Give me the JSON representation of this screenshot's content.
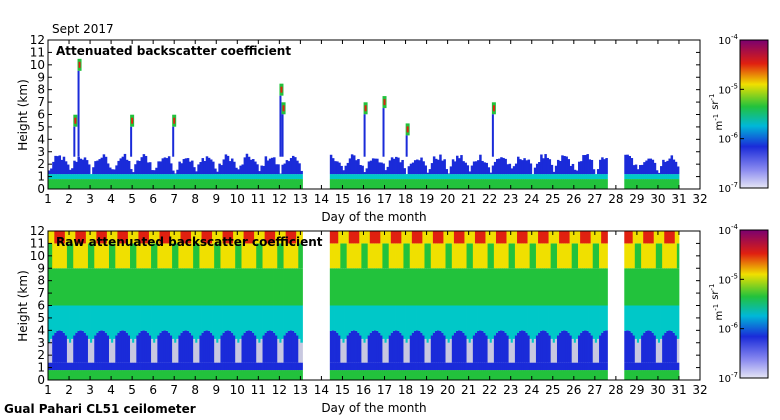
{
  "header": {
    "date_label": "Sept 2017"
  },
  "footer": {
    "station_label": "Gual Pahari CL51 ceilometer"
  },
  "colors": {
    "blue": "#1a2bd9",
    "cyan": "#00c8c8",
    "green": "#22c23c",
    "yellow": "#f0e000",
    "red": "#e02010",
    "purple": "#7a0070",
    "gray": "#c8c8e0"
  },
  "chart_data": [
    {
      "type": "heatmap",
      "title": "Attenuated backscatter coefficient",
      "xlabel": "Day of the month",
      "ylabel": "Height (km)",
      "xlim": [
        1,
        32
      ],
      "ylim": [
        0,
        12
      ],
      "x_ticks": [
        1,
        2,
        3,
        4,
        5,
        6,
        7,
        8,
        9,
        10,
        11,
        12,
        13,
        14,
        15,
        16,
        17,
        18,
        19,
        20,
        21,
        22,
        23,
        24,
        25,
        26,
        27,
        28,
        29,
        30,
        31,
        32
      ],
      "y_ticks": [
        0,
        1,
        2,
        3,
        4,
        5,
        6,
        7,
        8,
        9,
        10,
        11,
        12
      ],
      "data_gaps": [
        [
          13.1,
          14.4
        ],
        [
          27.6,
          28.4
        ]
      ],
      "boundary_layer_top_km": 2.6,
      "cloud_features": [
        {
          "day": 2.5,
          "height_km": 10.0
        },
        {
          "day": 2.3,
          "height_km": 5.5
        },
        {
          "day": 5.0,
          "height_km": 5.5
        },
        {
          "day": 7.0,
          "height_km": 5.5
        },
        {
          "day": 12.2,
          "height_km": 6.5
        },
        {
          "day": 12.1,
          "height_km": 8.0
        },
        {
          "day": 16.1,
          "height_km": 6.5
        },
        {
          "day": 17.0,
          "height_km": 7.0
        },
        {
          "day": 22.2,
          "height_km": 6.5
        },
        {
          "day": 18.1,
          "height_km": 4.8
        }
      ],
      "colorbar": {
        "scale": "log",
        "min": "10^-7",
        "max": "10^-4",
        "tick_labels": [
          "10-4",
          "10-5",
          "10-6",
          "10-7"
        ],
        "unit": "m-1 sr-1"
      }
    },
    {
      "type": "heatmap",
      "title": "Raw attenuated backscatter coefficient",
      "xlabel": "Day of the month",
      "ylabel": "Height (km)",
      "xlim": [
        1,
        32
      ],
      "ylim": [
        0,
        12
      ],
      "x_ticks": [
        1,
        2,
        3,
        4,
        5,
        6,
        7,
        8,
        9,
        10,
        11,
        12,
        13,
        14,
        15,
        16,
        17,
        18,
        19,
        20,
        21,
        22,
        23,
        24,
        25,
        26,
        27,
        28,
        29,
        30,
        31,
        32
      ],
      "y_ticks": [
        0,
        1,
        2,
        3,
        4,
        5,
        6,
        7,
        8,
        9,
        10,
        11,
        12
      ],
      "data_gaps": [
        [
          13.1,
          14.4
        ],
        [
          27.6,
          28.4
        ]
      ],
      "colorbar": {
        "scale": "log",
        "min": "10^-7",
        "max": "10^-4",
        "tick_labels": [
          "10-4",
          "10-5",
          "10-6",
          "10-7"
        ],
        "unit": "m-1 sr-1"
      }
    }
  ]
}
